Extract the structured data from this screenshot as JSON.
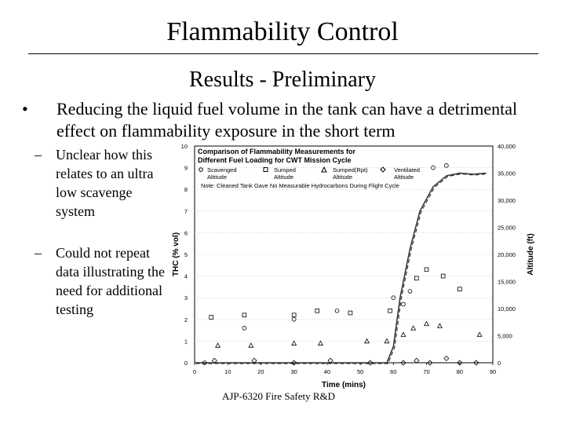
{
  "slide": {
    "title": "Flammability Control",
    "subtitle": "Results - Preliminary",
    "bullet": "Reducing the liquid fuel volume in the tank can have a detrimental effect on flammability exposure in the short term",
    "subbullets": [
      "Unclear how this relates to an ultra low scavenge system",
      "Could not repeat data illustrating the need for additional testing"
    ],
    "footer": "AJP-6320 Fire Safety R&D"
  },
  "chart_data": {
    "type": "scatter",
    "title_lines": [
      "Comparison of Flammability Measurements for",
      "Different Fuel Loading for CWT Mission Cycle"
    ],
    "xlabel": "Time (mins)",
    "ylabel": "THC (% vol)",
    "y2label": "Altitude (ft)",
    "xlim": [
      0,
      90
    ],
    "ylim": [
      0,
      10
    ],
    "y2lim": [
      0,
      40000
    ],
    "xticks": [
      "0",
      "10",
      "20",
      "30",
      "40",
      "50",
      "60",
      "70",
      "80",
      "90"
    ],
    "yticks": [
      "0",
      "1",
      "2",
      "3",
      "4",
      "5",
      "6",
      "7",
      "8",
      "9",
      "10"
    ],
    "y2ticks": [
      "0",
      "5,000",
      "10,000",
      "15,000",
      "20,000",
      "25,000",
      "30,000",
      "35,000",
      "40,000"
    ],
    "legend_labels": [
      "Scavenged",
      "Sumped",
      "Sumped(Rpt)",
      "Ventilated"
    ],
    "legend_alt_label": "Altitude",
    "note": "Note: Cleaned Tank Gave No Measurable Hydrocarbons During Flight Cycle",
    "series": [
      {
        "name": "Scavenged",
        "marker": "circle",
        "x": [
          3,
          15,
          30,
          43,
          60,
          63,
          65,
          72,
          76
        ],
        "y": [
          0,
          1.6,
          2,
          2.4,
          3,
          2.7,
          3.3,
          9,
          9.1
        ]
      },
      {
        "name": "Sumped",
        "marker": "square",
        "x": [
          5,
          15,
          30,
          37,
          47,
          59,
          67,
          70,
          75,
          80
        ],
        "y": [
          2.1,
          2.2,
          2.2,
          2.4,
          2.3,
          2.4,
          3.9,
          4.3,
          4,
          3.4
        ]
      },
      {
        "name": "Sumped(Rpt)",
        "marker": "triangle",
        "x": [
          7,
          17,
          30,
          38,
          52,
          58,
          63,
          66,
          70,
          74,
          86
        ],
        "y": [
          0.8,
          0.8,
          0.9,
          0.9,
          1,
          1,
          1.3,
          1.6,
          1.8,
          1.7,
          1.3
        ]
      },
      {
        "name": "Ventilated",
        "marker": "diamond",
        "x": [
          6,
          18,
          30,
          41,
          53,
          63,
          67,
          71,
          76,
          80,
          85
        ],
        "y": [
          0.1,
          0.1,
          0,
          0.1,
          0,
          0,
          0.1,
          0,
          0.2,
          0,
          0
        ]
      }
    ],
    "altitude": {
      "x": [
        0,
        58,
        60,
        62,
        65,
        68,
        72,
        76,
        80,
        84,
        88
      ],
      "y": [
        0,
        0,
        3000,
        12000,
        21000,
        28000,
        32500,
        34500,
        35000,
        34800,
        35000
      ]
    }
  }
}
